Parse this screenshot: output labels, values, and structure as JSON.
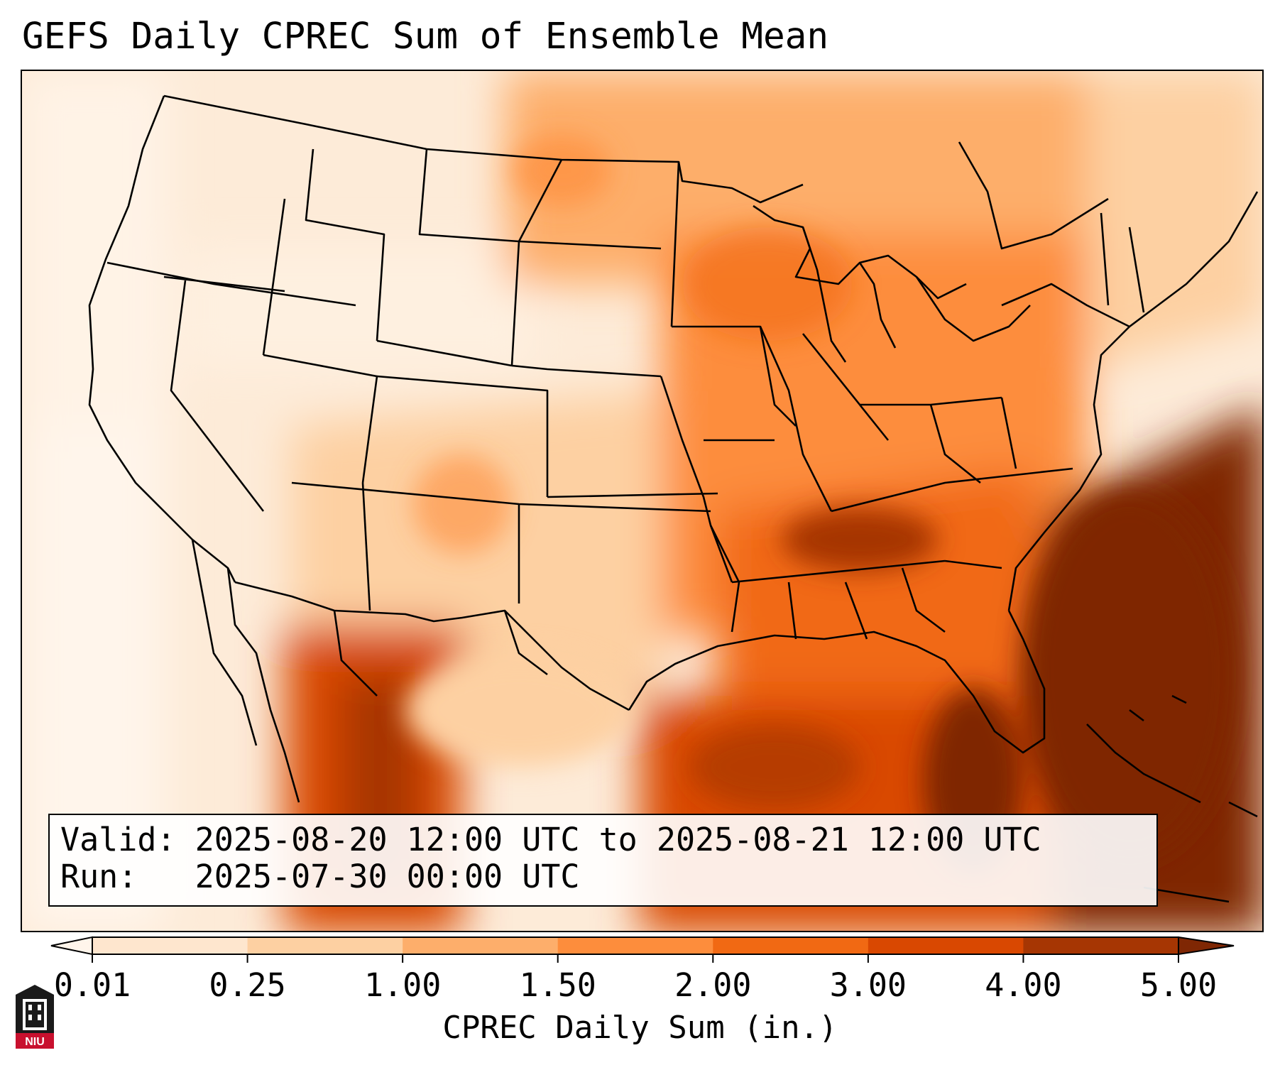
{
  "title": "GEFS Daily CPREC Sum of Ensemble Mean",
  "info": {
    "valid": "Valid: 2025-08-20 12:00 UTC to 2025-08-21 12:00 UTC",
    "run": "Run:   2025-07-30 00:00 UTC"
  },
  "colorbar": {
    "label": "CPREC Daily Sum (in.)",
    "ticks": [
      "0.01",
      "0.25",
      "1.00",
      "1.50",
      "2.00",
      "3.00",
      "4.00",
      "5.00"
    ],
    "colors": [
      "#fee6ce",
      "#fdd0a2",
      "#fdae6b",
      "#fd8d3c",
      "#f16913",
      "#d94801",
      "#a63603",
      "#7f2704"
    ],
    "under_color": "#fff5eb",
    "over_color": "#7f2704"
  },
  "logo": {
    "text": "NIU"
  },
  "map": {
    "projection": "Lambert conformal, contiguous United States",
    "field": "CPREC daily sum",
    "colors": {
      "very_light": "#fdebd8",
      "light": "#fdd0a2",
      "light_medium": "#fdae6b",
      "medium": "#fd8d3c",
      "medium_dark": "#f16913",
      "dark": "#d94801",
      "very_dark": "#a63603",
      "darkest": "#7f2704"
    }
  }
}
